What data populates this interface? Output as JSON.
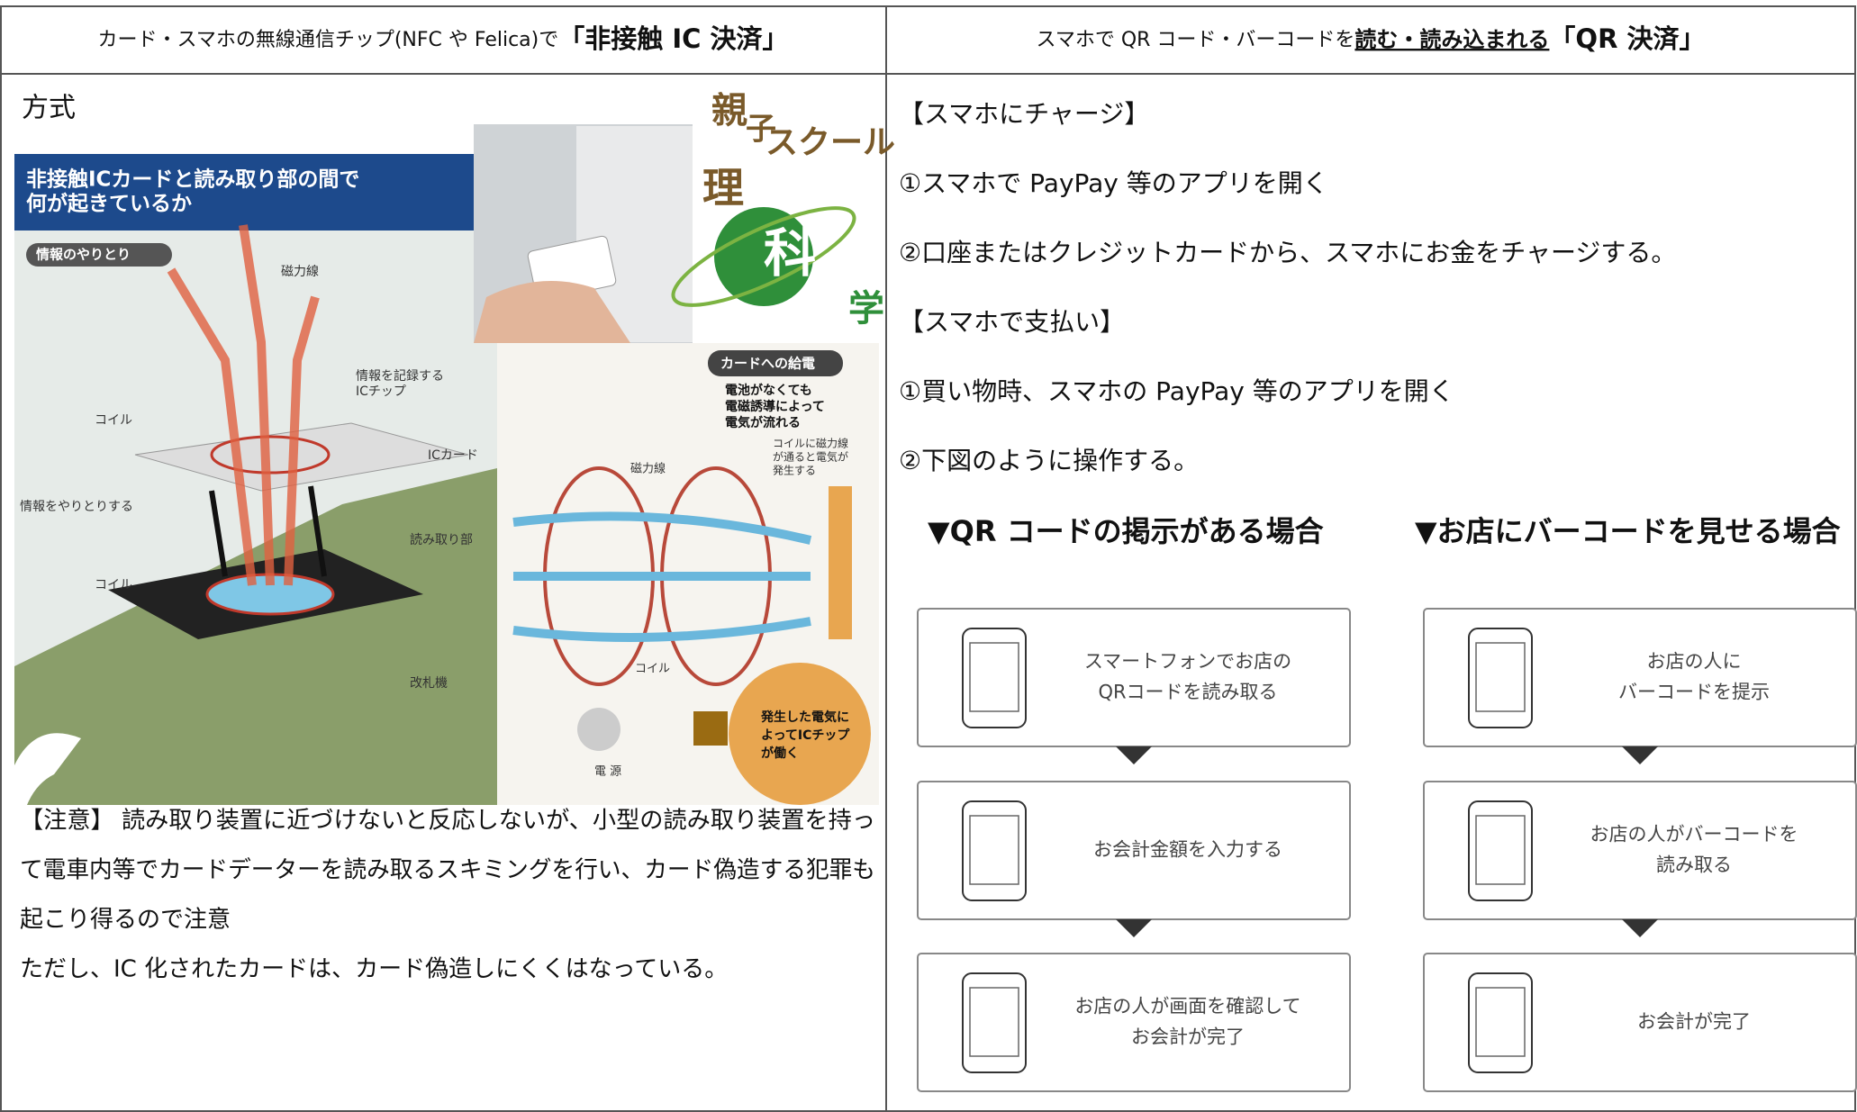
{
  "header": {
    "left": {
      "text": "カード・スマホの無線通信チップ(NFC や Felica)で",
      "emphasis": "「非接触 IC 決済」"
    },
    "right": {
      "text": "スマホで QR コード・バーコードを",
      "underlined": "読む・読み込まれる",
      "emphasis": "「QR 決済」"
    }
  },
  "left": {
    "heading": "方式",
    "illustration": {
      "title": [
        "非接触ICカードと読み取り部の間で",
        "何が起きているか"
      ],
      "logo": [
        "親",
        "子",
        "スクール",
        "理",
        "科",
        "学"
      ],
      "labels": [
        "情報のやりとり",
        "磁力線",
        "情報を記録する",
        "ICチップ",
        "コイル",
        "ICカード",
        "情報をやりとりする",
        "読み取り部",
        "コイル",
        "改札機",
        "カードへの給電",
        "電池がなくても",
        "電磁誘導によって",
        "電気が流れる",
        "コイルに磁力線",
        "が通ると電気が",
        "発生する",
        "磁力線",
        "コイル",
        "電 源",
        "発生した電気に",
        "よってICチップ",
        "が働く"
      ]
    },
    "notes": [
      "【注意】 読み取り装置に近づけないと反応しないが、小型の読み取り装置を持っ",
      "て電車内等でカードデーターを読み取るスキミングを行い、カード偽造する犯罪も",
      "起こり得るので注意",
      "ただし、IC 化されたカードは、カード偽造しにくくはなっている。"
    ]
  },
  "right": {
    "lines": [
      "【スマホにチャージ】",
      "①スマホで PayPay 等のアプリを開く",
      "②口座またはクレジットカードから、スマホにお金をチャージする。",
      "【スマホで支払い】",
      "①買い物時、スマホの PayPay 等のアプリを開く",
      "②下図のように操作する。"
    ],
    "flows": [
      {
        "title": "▼QR コードの掲示がある場合",
        "steps": [
          [
            "スマートフォンでお店の",
            "QRコードを読み取る"
          ],
          [
            "お会計金額を入力する"
          ],
          [
            "お店の人が画面を確認して",
            "お会計が完了"
          ]
        ]
      },
      {
        "title": "▼お店にバーコードを見せる場合",
        "steps": [
          [
            "お店の人に",
            "バーコードを提示"
          ],
          [
            "お店の人がバーコードを",
            "読み取る"
          ],
          [
            "お会計が完了"
          ]
        ]
      }
    ]
  }
}
